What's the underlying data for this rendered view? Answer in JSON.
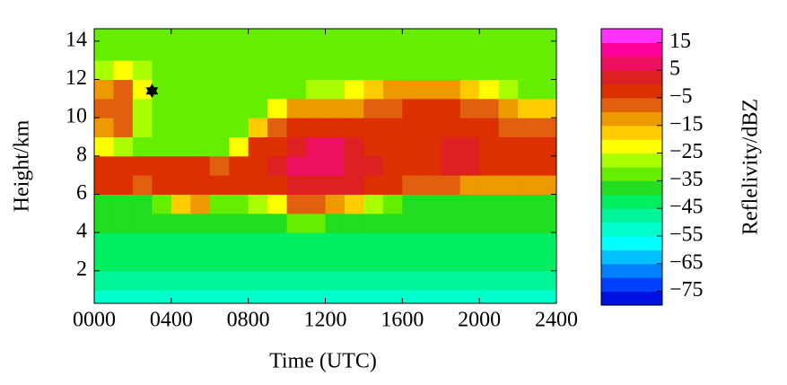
{
  "chart_data": {
    "type": "heatmap",
    "xlabel": "Time (UTC)",
    "ylabel": "Height/km",
    "colorbar_label": "Reflelivity/dBZ",
    "xbins": [
      0,
      100,
      200,
      300,
      400,
      500,
      600,
      700,
      800,
      900,
      1000,
      1100,
      1200,
      1300,
      1400,
      1500,
      1600,
      1700,
      1800,
      1900,
      2000,
      2100,
      2200,
      2300,
      2400
    ],
    "ybins": [
      0,
      1,
      2,
      3,
      4,
      5,
      6,
      7,
      8,
      9,
      10,
      11,
      12,
      13,
      14,
      15
    ],
    "z": [
      [
        -55,
        -55,
        -55,
        -55,
        -55,
        -55,
        -55,
        -55,
        -55,
        -55,
        -55,
        -55,
        -55,
        -55,
        -55,
        -55,
        -55,
        -55,
        -55,
        -55,
        -55,
        -55,
        -55,
        -55
      ],
      [
        -50,
        -50,
        -50,
        -50,
        -50,
        -50,
        -50,
        -50,
        -50,
        -50,
        -50,
        -50,
        -50,
        -50,
        -50,
        -50,
        -50,
        -50,
        -50,
        -50,
        -50,
        -50,
        -50,
        -50
      ],
      [
        -45,
        -45,
        -45,
        -45,
        -45,
        -45,
        -45,
        -45,
        -45,
        -45,
        -45,
        -45,
        -45,
        -45,
        -45,
        -45,
        -45,
        -45,
        -45,
        -45,
        -45,
        -45,
        -45,
        -45
      ],
      [
        -42,
        -42,
        -42,
        -42,
        -42,
        -42,
        -42,
        -42,
        -42,
        -42,
        -42,
        -42,
        -42,
        -42,
        -42,
        -42,
        -42,
        -42,
        -42,
        -42,
        -42,
        -42,
        -42,
        -42
      ],
      [
        -40,
        -40,
        -40,
        -40,
        -40,
        -40,
        -40,
        -40,
        -40,
        -40,
        -35,
        -35,
        -40,
        -40,
        -40,
        -40,
        -40,
        -40,
        -40,
        -40,
        -40,
        -40,
        -40,
        -40
      ],
      [
        -40,
        -40,
        -40,
        -35,
        -20,
        -15,
        -35,
        -35,
        -30,
        -25,
        -10,
        -10,
        -15,
        -20,
        -30,
        -35,
        -38,
        -38,
        -38,
        -38,
        -38,
        -38,
        -38,
        -38
      ],
      [
        -5,
        -5,
        -8,
        -5,
        -3,
        -3,
        -5,
        -5,
        -3,
        -2,
        0,
        3,
        3,
        0,
        -3,
        -5,
        -10,
        -10,
        -10,
        -15,
        -15,
        -15,
        -15,
        -15
      ],
      [
        -3,
        -3,
        -5,
        -5,
        -3,
        -5,
        -8,
        -5,
        -2,
        0,
        5,
        7,
        7,
        3,
        0,
        -2,
        -3,
        -2,
        3,
        2,
        -3,
        -3,
        -5,
        -5
      ],
      [
        -25,
        -30,
        -35,
        -35,
        -35,
        -35,
        -35,
        -25,
        -5,
        -2,
        2,
        5,
        5,
        2,
        -2,
        -3,
        -3,
        -2,
        3,
        2,
        -3,
        -5,
        -5,
        -5
      ],
      [
        -12,
        -10,
        -30,
        -35,
        -35,
        -35,
        -35,
        -35,
        -20,
        -8,
        -5,
        -3,
        -5,
        -5,
        -5,
        -5,
        -5,
        -3,
        -2,
        -3,
        -5,
        -8,
        -10,
        -10
      ],
      [
        -10,
        -8,
        -30,
        -35,
        -35,
        -35,
        -35,
        -35,
        -35,
        -25,
        -15,
        -12,
        -15,
        -12,
        -10,
        -8,
        -5,
        -5,
        -5,
        -8,
        -10,
        -15,
        -20,
        -20
      ],
      [
        -12,
        -10,
        -25,
        -35,
        -35,
        -35,
        -35,
        -35,
        -35,
        -35,
        -35,
        -30,
        -30,
        -25,
        -20,
        -15,
        -15,
        -12,
        -12,
        -20,
        -25,
        -30,
        -35,
        -35
      ],
      [
        -28,
        -25,
        -30,
        -35,
        -35,
        -35,
        -35,
        -35,
        -35,
        -35,
        -35,
        -35,
        -35,
        -35,
        -35,
        -35,
        -35,
        -35,
        -35,
        -35,
        -35,
        -35,
        -35,
        -35
      ],
      [
        -33,
        -33,
        -33,
        -33,
        -33,
        -33,
        -33,
        -33,
        -33,
        -33,
        -33,
        -33,
        -33,
        -33,
        -33,
        -33,
        -33,
        -33,
        -33,
        -33,
        -33,
        -33,
        -33,
        -33
      ],
      [
        -33,
        -33,
        -33,
        -33,
        -33,
        -33,
        -33,
        -33,
        -33,
        -33,
        -33,
        -33,
        -33,
        -33,
        -33,
        -33,
        -33,
        -33,
        -33,
        -33,
        -33,
        -33,
        -33,
        -33
      ]
    ],
    "markers": [
      {
        "x": 300,
        "y": 11.4
      }
    ],
    "xlim": [
      0,
      2400
    ],
    "xticks": [
      {
        "value": 0,
        "label": "0000"
      },
      {
        "value": 400,
        "label": "0400"
      },
      {
        "value": 800,
        "label": "0800"
      },
      {
        "value": 1200,
        "label": "1200"
      },
      {
        "value": 1600,
        "label": "1600"
      },
      {
        "value": 2000,
        "label": "2000"
      },
      {
        "value": 2400,
        "label": "2400"
      }
    ],
    "ylim": [
      0.3,
      14.65
    ],
    "yticks": [
      2,
      4,
      6,
      8,
      10,
      12,
      14
    ],
    "clim": [
      -80,
      20
    ],
    "colors": [
      "#0010e0",
      "#0040ff",
      "#0080ff",
      "#00c0ff",
      "#00ffff",
      "#00ffcc",
      "#00f598",
      "#00ee60",
      "#22dd22",
      "#66ee00",
      "#aaff00",
      "#ffff00",
      "#ffcc00",
      "#ee9900",
      "#e06010",
      "#dd3000",
      "#dd2020",
      "#ee1060",
      "#ff0099",
      "#ff33ff"
    ],
    "cticks": [
      15,
      5,
      {
        "value": -5,
        "label": "−5"
      },
      {
        "value": -15,
        "label": "−15"
      },
      {
        "value": -25,
        "label": "−25"
      },
      {
        "value": -35,
        "label": "−35"
      },
      {
        "value": -45,
        "label": "−45"
      },
      {
        "value": -55,
        "label": "−55"
      },
      {
        "value": -65,
        "label": "−65"
      },
      {
        "value": -75,
        "label": "−75"
      }
    ]
  }
}
